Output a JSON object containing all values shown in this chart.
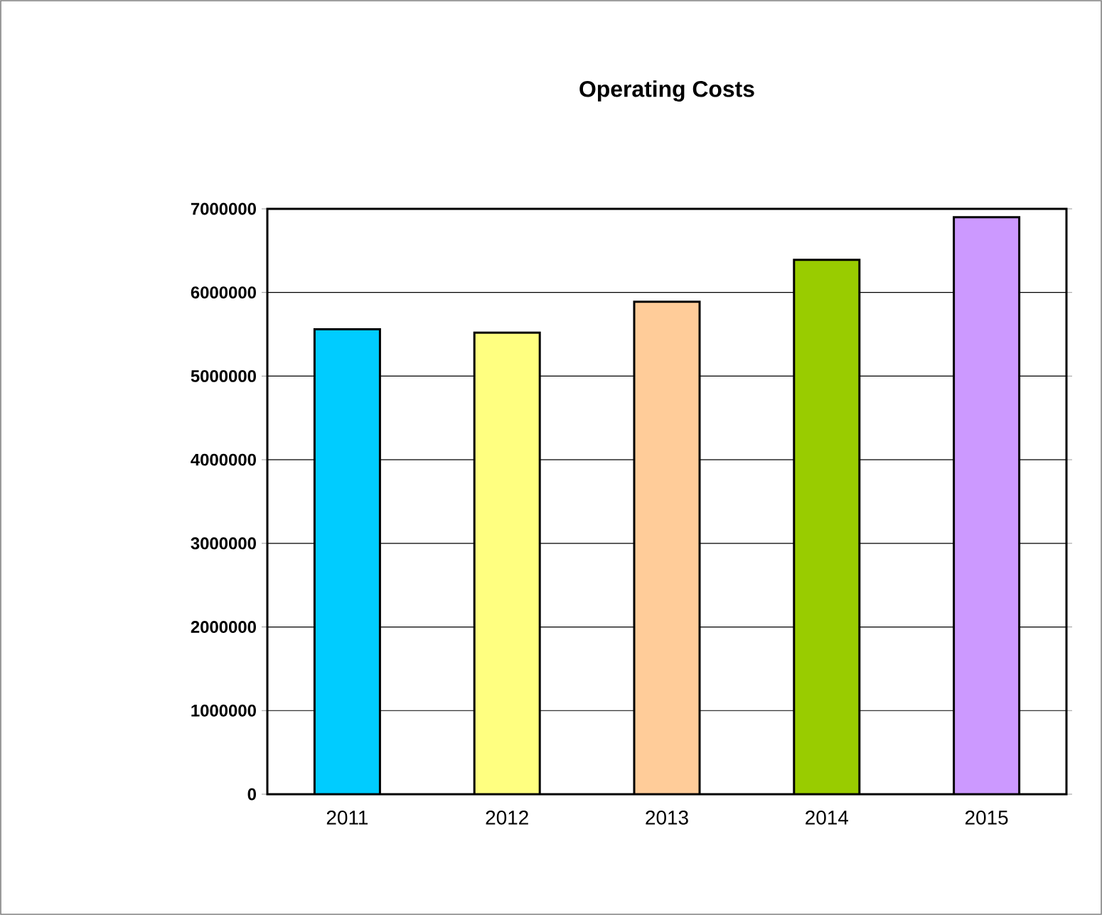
{
  "chart_data": {
    "type": "bar",
    "title": "**Operating Costs**",
    "categories": [
      "2011",
      "2012",
      "2013",
      "2014",
      "2015"
    ],
    "values": [
      5560000,
      5520000,
      5890000,
      6390000,
      6900000
    ],
    "colors": [
      "#00ccff",
      "#ffff80",
      "#ffcc99",
      "#99cc00",
      "#cc99ff"
    ],
    "ylim": [
      0,
      7000000
    ],
    "yticks": [
      0,
      1000000,
      2000000,
      3000000,
      4000000,
      5000000,
      6000000,
      7000000
    ],
    "grid": "y"
  }
}
